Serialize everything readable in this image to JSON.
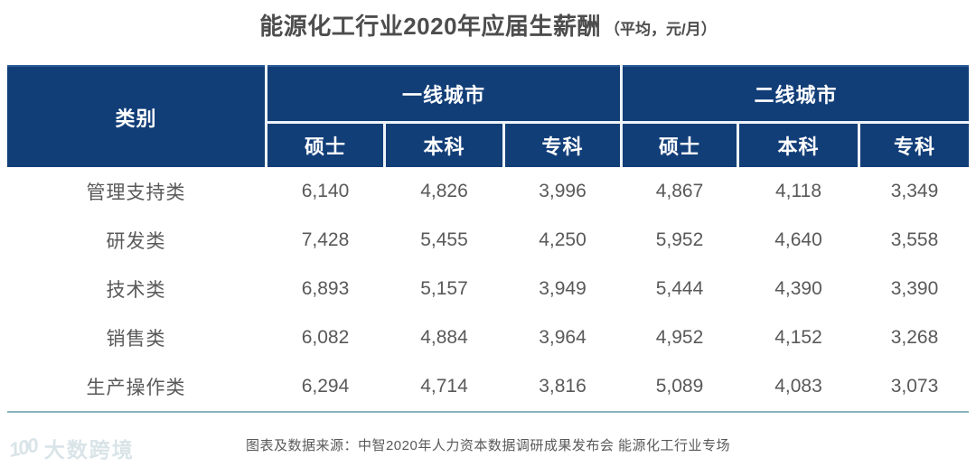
{
  "title": {
    "main": "能源化工行业2020年应届生薪酬",
    "unit": "（平均，元/月）"
  },
  "table": {
    "category_header": "类别",
    "group_headers": [
      "一线城市",
      "二线城市"
    ],
    "sub_headers": [
      "硕士",
      "本科",
      "专科",
      "硕士",
      "本科",
      "专科"
    ],
    "rows": [
      {
        "label": "管理支持类",
        "values": [
          "6,140",
          "4,826",
          "3,996",
          "4,867",
          "4,118",
          "3,349"
        ]
      },
      {
        "label": "研发类",
        "values": [
          "7,428",
          "5,455",
          "4,250",
          "5,952",
          "4,640",
          "3,558"
        ]
      },
      {
        "label": "技术类",
        "values": [
          "6,893",
          "5,157",
          "3,949",
          "5,444",
          "4,390",
          "3,390"
        ]
      },
      {
        "label": "销售类",
        "values": [
          "6,082",
          "4,884",
          "3,964",
          "4,952",
          "4,152",
          "3,268"
        ]
      },
      {
        "label": "生产操作类",
        "values": [
          "6,294",
          "4,714",
          "3,816",
          "5,089",
          "4,083",
          "3,073"
        ]
      }
    ]
  },
  "footer": {
    "source": "图表及数据来源：中智2020年人力资本数据调研成果发布会 能源化工行业专场"
  },
  "watermark": {
    "logo": "100",
    "text": "大数跨境"
  },
  "colors": {
    "header_bg": "#123e78",
    "header_text": "#ffffff",
    "header_divider": "#eef3fa",
    "body_text": "#595959",
    "title_text": "#4d4d4d",
    "bottom_border": "#8ab4bd"
  },
  "chart_data": {
    "type": "table",
    "title": "能源化工行业2020年应届生薪酬（平均，元/月）",
    "column_groups": [
      {
        "name": "一线城市",
        "columns": [
          "硕士",
          "本科",
          "专科"
        ]
      },
      {
        "name": "二线城市",
        "columns": [
          "硕士",
          "本科",
          "专科"
        ]
      }
    ],
    "columns": [
      "类别",
      "一线城市-硕士",
      "一线城市-本科",
      "一线城市-专科",
      "二线城市-硕士",
      "二线城市-本科",
      "二线城市-专科"
    ],
    "rows": [
      [
        "管理支持类",
        6140,
        4826,
        3996,
        4867,
        4118,
        3349
      ],
      [
        "研发类",
        7428,
        5455,
        4250,
        5952,
        4640,
        3558
      ],
      [
        "技术类",
        6893,
        5157,
        3949,
        5444,
        4390,
        3390
      ],
      [
        "销售类",
        6082,
        4884,
        3964,
        4952,
        4152,
        3268
      ],
      [
        "生产操作类",
        6294,
        4714,
        3816,
        5089,
        4083,
        3073
      ]
    ],
    "source": "图表及数据来源：中智2020年人力资本数据调研成果发布会 能源化工行业专场"
  }
}
